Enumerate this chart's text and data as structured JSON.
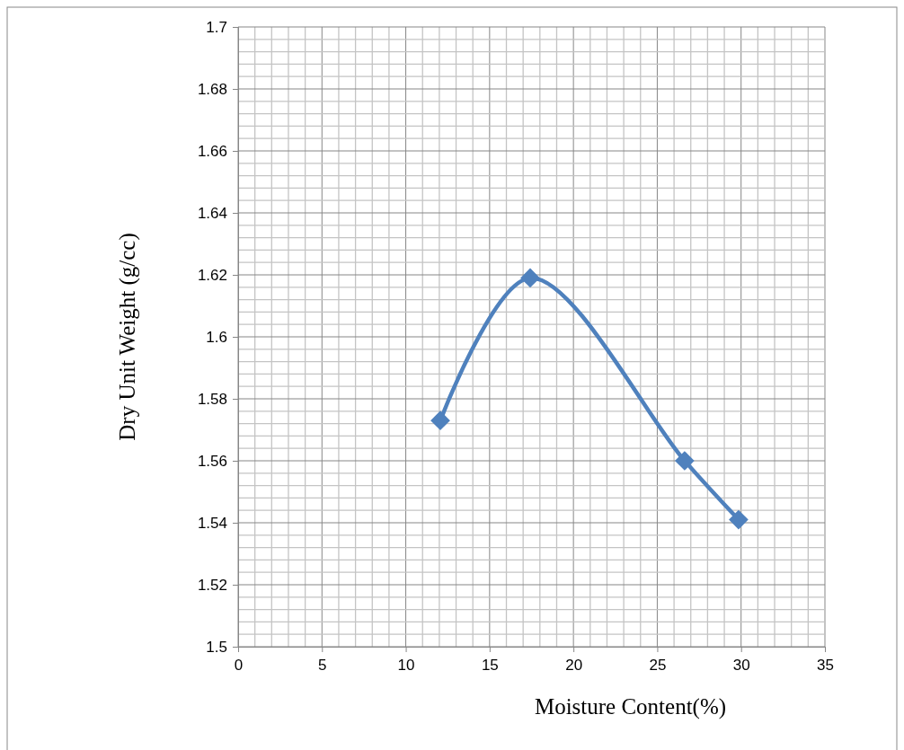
{
  "chart_data": {
    "type": "line",
    "xlabel": "Moisture Content(%)",
    "ylabel": "Dry Unit Weight (g/cc)",
    "x": [
      12.06,
      17.42,
      26.63,
      29.85
    ],
    "series": [
      {
        "color": "#4f81bd",
        "values": [
          1.573,
          1.619,
          1.56,
          1.541
        ]
      }
    ],
    "xlim": [
      0,
      35
    ],
    "xticks": [
      0,
      5,
      10,
      15,
      20,
      25,
      30,
      35
    ],
    "ylim": [
      1.5,
      1.7
    ],
    "yticks": [
      1.5,
      1.52,
      1.54,
      1.56,
      1.58,
      1.6,
      1.62,
      1.64,
      1.66,
      1.68,
      1.7
    ],
    "grid": true,
    "marker": "diamond",
    "line_style": "solid"
  }
}
